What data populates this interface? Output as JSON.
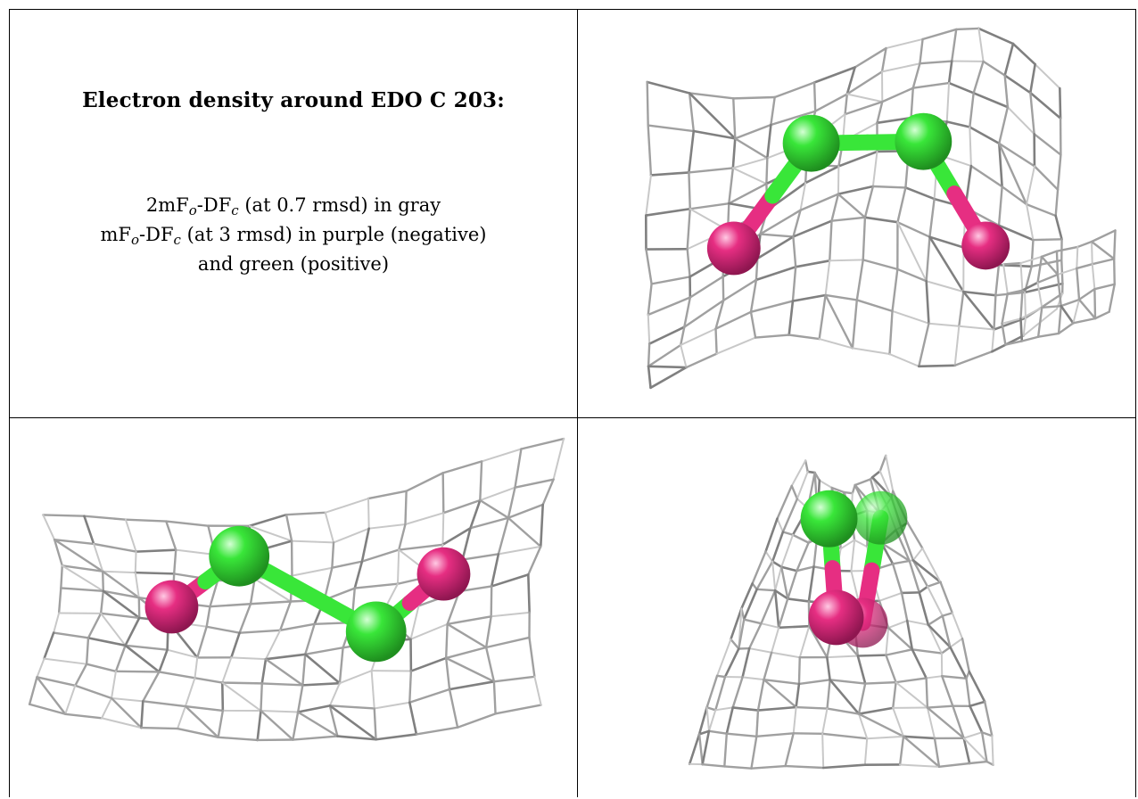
{
  "caption": {
    "title": "Electron density around EDO C 203:",
    "line1": {
      "pre": "2mF",
      "sub1": "o",
      "mid": "-DF",
      "sub2": "c",
      "post": " (at 0.7 rmsd) in gray"
    },
    "line2": {
      "pre": "mF",
      "sub1": "o",
      "mid": "-DF",
      "sub2": "c",
      "post": " (at 3 rmsd) in purple (negative)"
    },
    "line3": "and green (positive)"
  },
  "colors": {
    "mesh": "#a0a0a0",
    "carbon": "#39e639",
    "oxygen": "#e62e82",
    "border": "#000000"
  },
  "views": [
    {
      "name": "view-1",
      "atoms": [
        "O",
        "C",
        "C",
        "O"
      ]
    },
    {
      "name": "view-2",
      "atoms": [
        "O",
        "C",
        "C",
        "O"
      ]
    },
    {
      "name": "view-3",
      "atoms": [
        "O",
        "C",
        "C",
        "O"
      ]
    }
  ]
}
